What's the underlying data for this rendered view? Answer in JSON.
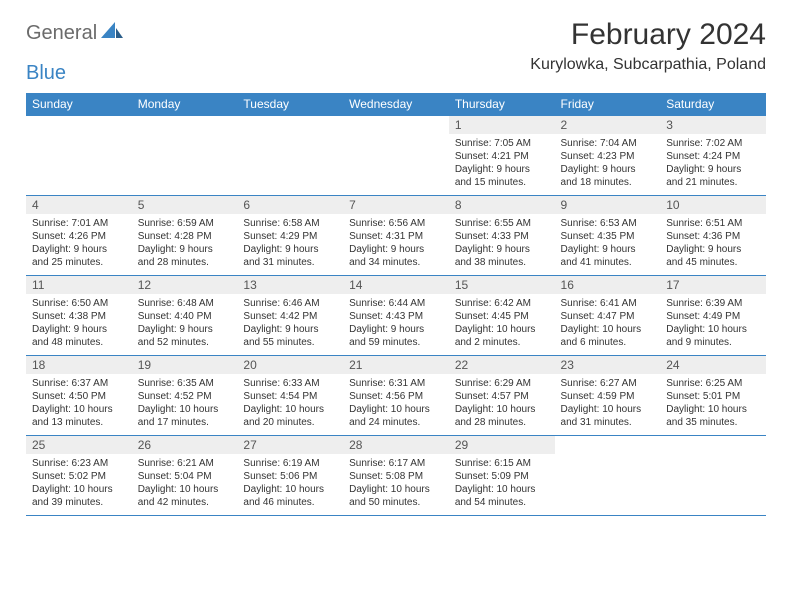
{
  "brand": {
    "part1": "General",
    "part2": "Blue"
  },
  "title": "February 2024",
  "location": "Kurylowka, Subcarpathia, Poland",
  "colors": {
    "accent": "#3a84c4",
    "header_text": "#ffffff",
    "daynum_bg": "#eeeeee",
    "body_text": "#333333",
    "page_bg": "#ffffff"
  },
  "typography": {
    "title_fontsize": 30,
    "location_fontsize": 16,
    "dayhead_fontsize": 12,
    "daynum_fontsize": 12,
    "detail_fontsize": 10
  },
  "day_headers": [
    "Sunday",
    "Monday",
    "Tuesday",
    "Wednesday",
    "Thursday",
    "Friday",
    "Saturday"
  ],
  "weeks": [
    [
      {
        "empty": true
      },
      {
        "empty": true
      },
      {
        "empty": true
      },
      {
        "empty": true
      },
      {
        "n": "1",
        "sunrise": "Sunrise: 7:05 AM",
        "sunset": "Sunset: 4:21 PM",
        "daylight1": "Daylight: 9 hours",
        "daylight2": "and 15 minutes."
      },
      {
        "n": "2",
        "sunrise": "Sunrise: 7:04 AM",
        "sunset": "Sunset: 4:23 PM",
        "daylight1": "Daylight: 9 hours",
        "daylight2": "and 18 minutes."
      },
      {
        "n": "3",
        "sunrise": "Sunrise: 7:02 AM",
        "sunset": "Sunset: 4:24 PM",
        "daylight1": "Daylight: 9 hours",
        "daylight2": "and 21 minutes."
      }
    ],
    [
      {
        "n": "4",
        "sunrise": "Sunrise: 7:01 AM",
        "sunset": "Sunset: 4:26 PM",
        "daylight1": "Daylight: 9 hours",
        "daylight2": "and 25 minutes."
      },
      {
        "n": "5",
        "sunrise": "Sunrise: 6:59 AM",
        "sunset": "Sunset: 4:28 PM",
        "daylight1": "Daylight: 9 hours",
        "daylight2": "and 28 minutes."
      },
      {
        "n": "6",
        "sunrise": "Sunrise: 6:58 AM",
        "sunset": "Sunset: 4:29 PM",
        "daylight1": "Daylight: 9 hours",
        "daylight2": "and 31 minutes."
      },
      {
        "n": "7",
        "sunrise": "Sunrise: 6:56 AM",
        "sunset": "Sunset: 4:31 PM",
        "daylight1": "Daylight: 9 hours",
        "daylight2": "and 34 minutes."
      },
      {
        "n": "8",
        "sunrise": "Sunrise: 6:55 AM",
        "sunset": "Sunset: 4:33 PM",
        "daylight1": "Daylight: 9 hours",
        "daylight2": "and 38 minutes."
      },
      {
        "n": "9",
        "sunrise": "Sunrise: 6:53 AM",
        "sunset": "Sunset: 4:35 PM",
        "daylight1": "Daylight: 9 hours",
        "daylight2": "and 41 minutes."
      },
      {
        "n": "10",
        "sunrise": "Sunrise: 6:51 AM",
        "sunset": "Sunset: 4:36 PM",
        "daylight1": "Daylight: 9 hours",
        "daylight2": "and 45 minutes."
      }
    ],
    [
      {
        "n": "11",
        "sunrise": "Sunrise: 6:50 AM",
        "sunset": "Sunset: 4:38 PM",
        "daylight1": "Daylight: 9 hours",
        "daylight2": "and 48 minutes."
      },
      {
        "n": "12",
        "sunrise": "Sunrise: 6:48 AM",
        "sunset": "Sunset: 4:40 PM",
        "daylight1": "Daylight: 9 hours",
        "daylight2": "and 52 minutes."
      },
      {
        "n": "13",
        "sunrise": "Sunrise: 6:46 AM",
        "sunset": "Sunset: 4:42 PM",
        "daylight1": "Daylight: 9 hours",
        "daylight2": "and 55 minutes."
      },
      {
        "n": "14",
        "sunrise": "Sunrise: 6:44 AM",
        "sunset": "Sunset: 4:43 PM",
        "daylight1": "Daylight: 9 hours",
        "daylight2": "and 59 minutes."
      },
      {
        "n": "15",
        "sunrise": "Sunrise: 6:42 AM",
        "sunset": "Sunset: 4:45 PM",
        "daylight1": "Daylight: 10 hours",
        "daylight2": "and 2 minutes."
      },
      {
        "n": "16",
        "sunrise": "Sunrise: 6:41 AM",
        "sunset": "Sunset: 4:47 PM",
        "daylight1": "Daylight: 10 hours",
        "daylight2": "and 6 minutes."
      },
      {
        "n": "17",
        "sunrise": "Sunrise: 6:39 AM",
        "sunset": "Sunset: 4:49 PM",
        "daylight1": "Daylight: 10 hours",
        "daylight2": "and 9 minutes."
      }
    ],
    [
      {
        "n": "18",
        "sunrise": "Sunrise: 6:37 AM",
        "sunset": "Sunset: 4:50 PM",
        "daylight1": "Daylight: 10 hours",
        "daylight2": "and 13 minutes."
      },
      {
        "n": "19",
        "sunrise": "Sunrise: 6:35 AM",
        "sunset": "Sunset: 4:52 PM",
        "daylight1": "Daylight: 10 hours",
        "daylight2": "and 17 minutes."
      },
      {
        "n": "20",
        "sunrise": "Sunrise: 6:33 AM",
        "sunset": "Sunset: 4:54 PM",
        "daylight1": "Daylight: 10 hours",
        "daylight2": "and 20 minutes."
      },
      {
        "n": "21",
        "sunrise": "Sunrise: 6:31 AM",
        "sunset": "Sunset: 4:56 PM",
        "daylight1": "Daylight: 10 hours",
        "daylight2": "and 24 minutes."
      },
      {
        "n": "22",
        "sunrise": "Sunrise: 6:29 AM",
        "sunset": "Sunset: 4:57 PM",
        "daylight1": "Daylight: 10 hours",
        "daylight2": "and 28 minutes."
      },
      {
        "n": "23",
        "sunrise": "Sunrise: 6:27 AM",
        "sunset": "Sunset: 4:59 PM",
        "daylight1": "Daylight: 10 hours",
        "daylight2": "and 31 minutes."
      },
      {
        "n": "24",
        "sunrise": "Sunrise: 6:25 AM",
        "sunset": "Sunset: 5:01 PM",
        "daylight1": "Daylight: 10 hours",
        "daylight2": "and 35 minutes."
      }
    ],
    [
      {
        "n": "25",
        "sunrise": "Sunrise: 6:23 AM",
        "sunset": "Sunset: 5:02 PM",
        "daylight1": "Daylight: 10 hours",
        "daylight2": "and 39 minutes."
      },
      {
        "n": "26",
        "sunrise": "Sunrise: 6:21 AM",
        "sunset": "Sunset: 5:04 PM",
        "daylight1": "Daylight: 10 hours",
        "daylight2": "and 42 minutes."
      },
      {
        "n": "27",
        "sunrise": "Sunrise: 6:19 AM",
        "sunset": "Sunset: 5:06 PM",
        "daylight1": "Daylight: 10 hours",
        "daylight2": "and 46 minutes."
      },
      {
        "n": "28",
        "sunrise": "Sunrise: 6:17 AM",
        "sunset": "Sunset: 5:08 PM",
        "daylight1": "Daylight: 10 hours",
        "daylight2": "and 50 minutes."
      },
      {
        "n": "29",
        "sunrise": "Sunrise: 6:15 AM",
        "sunset": "Sunset: 5:09 PM",
        "daylight1": "Daylight: 10 hours",
        "daylight2": "and 54 minutes."
      },
      {
        "empty": true
      },
      {
        "empty": true
      }
    ]
  ]
}
